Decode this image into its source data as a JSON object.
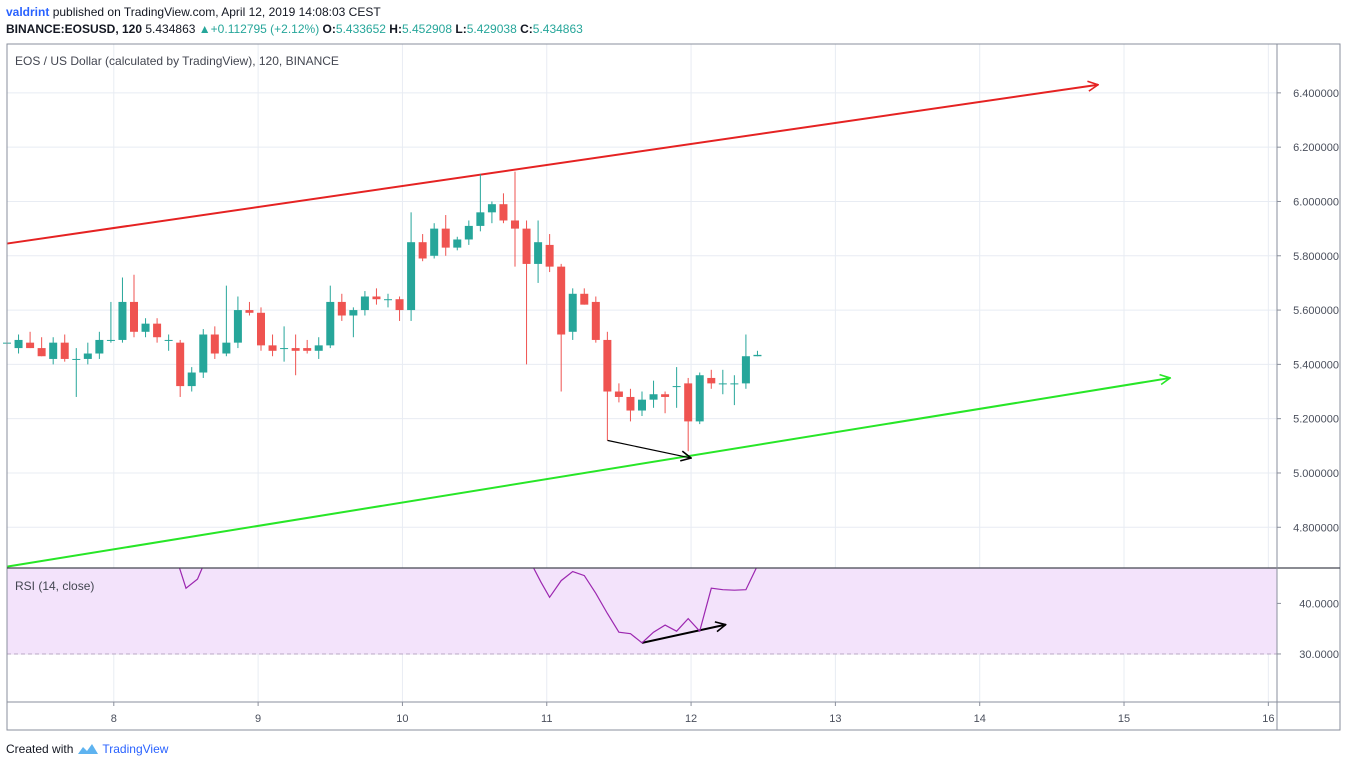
{
  "header": {
    "author": "valdrint",
    "published_text": "published on TradingView.com, April 12, 2019 14:08:03 CEST",
    "symbol": "BINANCE:EOSUSD, 120",
    "last": "5.434863",
    "change": "+0.112795 (+2.12%)",
    "o_label": "O:",
    "o_value": "5.433652",
    "h_label": "H:",
    "h_value": "5.452908",
    "l_label": "L:",
    "l_value": "5.429038",
    "c_label": "C:",
    "c_value": "5.434863"
  },
  "footer": {
    "created_with": "Created with",
    "brand": "TradingView"
  },
  "colors": {
    "up": "#26a69a",
    "down": "#ef5350",
    "resistance": "#e52222",
    "support": "#27e627",
    "rsi_line": "#9c27b0",
    "rsi_band": "#f3e3fb"
  },
  "chart_data": [
    {
      "type": "candlestick",
      "title": "EOS / US Dollar (calculated by TradingView), 120, BINANCE",
      "ylim": [
        4.65,
        6.58
      ],
      "xlim": [
        7.26,
        16.06
      ],
      "y_ticks": [
        "6.400000",
        "6.200000",
        "6.000000",
        "5.800000",
        "5.600000",
        "5.400000",
        "5.200000",
        "5.000000",
        "4.800000"
      ],
      "x_ticks": [
        "8",
        "9",
        "10",
        "11",
        "12",
        "13",
        "14",
        "15",
        "16"
      ],
      "grid": true,
      "candles": [
        {
          "x": 7.26,
          "o": 5.48,
          "h": 5.49,
          "l": 5.47,
          "c": 5.48
        },
        {
          "x": 7.34,
          "o": 5.46,
          "h": 5.51,
          "l": 5.44,
          "c": 5.49
        },
        {
          "x": 7.42,
          "o": 5.48,
          "h": 5.52,
          "l": 5.46,
          "c": 5.46
        },
        {
          "x": 7.5,
          "o": 5.46,
          "h": 5.5,
          "l": 5.43,
          "c": 5.43
        },
        {
          "x": 7.58,
          "o": 5.42,
          "h": 5.5,
          "l": 5.4,
          "c": 5.48
        },
        {
          "x": 7.66,
          "o": 5.48,
          "h": 5.51,
          "l": 5.41,
          "c": 5.42
        },
        {
          "x": 7.74,
          "o": 5.42,
          "h": 5.46,
          "l": 5.28,
          "c": 5.42
        },
        {
          "x": 7.82,
          "o": 5.42,
          "h": 5.48,
          "l": 5.4,
          "c": 5.44
        },
        {
          "x": 7.9,
          "o": 5.44,
          "h": 5.52,
          "l": 5.42,
          "c": 5.49
        },
        {
          "x": 7.98,
          "o": 5.49,
          "h": 5.63,
          "l": 5.48,
          "c": 5.49
        },
        {
          "x": 8.06,
          "o": 5.49,
          "h": 5.72,
          "l": 5.48,
          "c": 5.63
        },
        {
          "x": 8.14,
          "o": 5.63,
          "h": 5.73,
          "l": 5.5,
          "c": 5.52
        },
        {
          "x": 8.22,
          "o": 5.52,
          "h": 5.57,
          "l": 5.5,
          "c": 5.55
        },
        {
          "x": 8.3,
          "o": 5.55,
          "h": 5.57,
          "l": 5.48,
          "c": 5.5
        },
        {
          "x": 8.38,
          "o": 5.49,
          "h": 5.51,
          "l": 5.45,
          "c": 5.49
        },
        {
          "x": 8.46,
          "o": 5.48,
          "h": 5.49,
          "l": 5.28,
          "c": 5.32
        },
        {
          "x": 8.54,
          "o": 5.32,
          "h": 5.39,
          "l": 5.3,
          "c": 5.37
        },
        {
          "x": 8.62,
          "o": 5.37,
          "h": 5.53,
          "l": 5.35,
          "c": 5.51
        },
        {
          "x": 8.7,
          "o": 5.51,
          "h": 5.54,
          "l": 5.42,
          "c": 5.44
        },
        {
          "x": 8.78,
          "o": 5.44,
          "h": 5.69,
          "l": 5.43,
          "c": 5.48
        },
        {
          "x": 8.86,
          "o": 5.48,
          "h": 5.65,
          "l": 5.46,
          "c": 5.6
        },
        {
          "x": 8.94,
          "o": 5.6,
          "h": 5.63,
          "l": 5.58,
          "c": 5.59
        },
        {
          "x": 9.02,
          "o": 5.59,
          "h": 5.61,
          "l": 5.45,
          "c": 5.47
        },
        {
          "x": 9.1,
          "o": 5.47,
          "h": 5.51,
          "l": 5.43,
          "c": 5.45
        },
        {
          "x": 9.18,
          "o": 5.46,
          "h": 5.54,
          "l": 5.41,
          "c": 5.46
        },
        {
          "x": 9.26,
          "o": 5.46,
          "h": 5.51,
          "l": 5.36,
          "c": 5.45
        },
        {
          "x": 9.34,
          "o": 5.46,
          "h": 5.49,
          "l": 5.44,
          "c": 5.45
        },
        {
          "x": 9.42,
          "o": 5.45,
          "h": 5.5,
          "l": 5.42,
          "c": 5.47
        },
        {
          "x": 9.5,
          "o": 5.47,
          "h": 5.69,
          "l": 5.46,
          "c": 5.63
        },
        {
          "x": 9.58,
          "o": 5.63,
          "h": 5.66,
          "l": 5.56,
          "c": 5.58
        },
        {
          "x": 9.66,
          "o": 5.58,
          "h": 5.61,
          "l": 5.5,
          "c": 5.6
        },
        {
          "x": 9.74,
          "o": 5.6,
          "h": 5.67,
          "l": 5.58,
          "c": 5.65
        },
        {
          "x": 9.82,
          "o": 5.65,
          "h": 5.68,
          "l": 5.62,
          "c": 5.64
        },
        {
          "x": 9.9,
          "o": 5.64,
          "h": 5.66,
          "l": 5.61,
          "c": 5.64
        },
        {
          "x": 9.98,
          "o": 5.64,
          "h": 5.65,
          "l": 5.56,
          "c": 5.6
        },
        {
          "x": 10.06,
          "o": 5.6,
          "h": 5.96,
          "l": 5.56,
          "c": 5.85
        },
        {
          "x": 10.14,
          "o": 5.85,
          "h": 5.88,
          "l": 5.78,
          "c": 5.79
        },
        {
          "x": 10.22,
          "o": 5.8,
          "h": 5.92,
          "l": 5.79,
          "c": 5.9
        },
        {
          "x": 10.3,
          "o": 5.9,
          "h": 5.95,
          "l": 5.8,
          "c": 5.83
        },
        {
          "x": 10.38,
          "o": 5.83,
          "h": 5.87,
          "l": 5.82,
          "c": 5.86
        },
        {
          "x": 10.46,
          "o": 5.86,
          "h": 5.93,
          "l": 5.84,
          "c": 5.91
        },
        {
          "x": 10.54,
          "o": 5.91,
          "h": 6.1,
          "l": 5.89,
          "c": 5.96
        },
        {
          "x": 10.62,
          "o": 5.96,
          "h": 6.0,
          "l": 5.92,
          "c": 5.99
        },
        {
          "x": 10.7,
          "o": 5.99,
          "h": 6.03,
          "l": 5.92,
          "c": 5.93
        },
        {
          "x": 10.78,
          "o": 5.93,
          "h": 6.11,
          "l": 5.76,
          "c": 5.9
        },
        {
          "x": 10.86,
          "o": 5.9,
          "h": 5.93,
          "l": 5.4,
          "c": 5.77
        },
        {
          "x": 10.94,
          "o": 5.77,
          "h": 5.93,
          "l": 5.7,
          "c": 5.85
        },
        {
          "x": 11.02,
          "o": 5.84,
          "h": 5.88,
          "l": 5.74,
          "c": 5.76
        },
        {
          "x": 11.1,
          "o": 5.76,
          "h": 5.77,
          "l": 5.3,
          "c": 5.51
        },
        {
          "x": 11.18,
          "o": 5.52,
          "h": 5.68,
          "l": 5.49,
          "c": 5.66
        },
        {
          "x": 11.26,
          "o": 5.66,
          "h": 5.68,
          "l": 5.62,
          "c": 5.62
        },
        {
          "x": 11.34,
          "o": 5.63,
          "h": 5.65,
          "l": 5.48,
          "c": 5.49
        },
        {
          "x": 11.42,
          "o": 5.49,
          "h": 5.52,
          "l": 5.12,
          "c": 5.3
        },
        {
          "x": 11.5,
          "o": 5.3,
          "h": 5.33,
          "l": 5.26,
          "c": 5.28
        },
        {
          "x": 11.58,
          "o": 5.28,
          "h": 5.31,
          "l": 5.19,
          "c": 5.23
        },
        {
          "x": 11.66,
          "o": 5.23,
          "h": 5.3,
          "l": 5.21,
          "c": 5.27
        },
        {
          "x": 11.74,
          "o": 5.27,
          "h": 5.34,
          "l": 5.24,
          "c": 5.29
        },
        {
          "x": 11.82,
          "o": 5.29,
          "h": 5.3,
          "l": 5.22,
          "c": 5.28
        },
        {
          "x": 11.9,
          "o": 5.32,
          "h": 5.39,
          "l": 5.24,
          "c": 5.32
        },
        {
          "x": 11.98,
          "o": 5.33,
          "h": 5.35,
          "l": 5.08,
          "c": 5.19
        },
        {
          "x": 12.06,
          "o": 5.19,
          "h": 5.37,
          "l": 5.18,
          "c": 5.36
        },
        {
          "x": 12.14,
          "o": 5.35,
          "h": 5.38,
          "l": 5.31,
          "c": 5.33
        },
        {
          "x": 12.22,
          "o": 5.33,
          "h": 5.38,
          "l": 5.29,
          "c": 5.33
        },
        {
          "x": 12.3,
          "o": 5.33,
          "h": 5.36,
          "l": 5.25,
          "c": 5.33
        },
        {
          "x": 12.38,
          "o": 5.33,
          "h": 5.51,
          "l": 5.31,
          "c": 5.43
        },
        {
          "x": 12.46,
          "o": 5.43,
          "h": 5.45,
          "l": 5.43,
          "c": 5.435
        }
      ],
      "trendlines": [
        {
          "kind": "resistance",
          "from": {
            "x": 7.26,
            "y": 5.845
          },
          "to": {
            "x": 14.82,
            "y": 6.43
          },
          "arrow": true
        },
        {
          "kind": "support",
          "from": {
            "x": 7.26,
            "y": 4.655
          },
          "to": {
            "x": 15.32,
            "y": 5.35
          },
          "arrow": true
        },
        {
          "kind": "divergence",
          "from": {
            "x": 11.42,
            "y": 5.12
          },
          "to": {
            "x": 12.0,
            "y": 5.055
          },
          "arrow": true
        }
      ]
    },
    {
      "type": "line",
      "title": "RSI (14, close)",
      "ylim": [
        20.5,
        47.0
      ],
      "y_ticks": [
        "40.0000",
        "30.0000"
      ],
      "reference_line": 30,
      "band": [
        30,
        70
      ],
      "series": [
        {
          "segments": [
            [
              {
                "x": 8.45,
                "y": 47.5
              },
              {
                "x": 8.5,
                "y": 43.0
              },
              {
                "x": 8.58,
                "y": 44.8
              },
              {
                "x": 8.62,
                "y": 47.5
              }
            ],
            [
              {
                "x": 10.9,
                "y": 47.5
              },
              {
                "x": 10.96,
                "y": 44.2
              },
              {
                "x": 11.02,
                "y": 41.2
              },
              {
                "x": 11.1,
                "y": 44.5
              },
              {
                "x": 11.18,
                "y": 46.3
              },
              {
                "x": 11.26,
                "y": 45.5
              },
              {
                "x": 11.34,
                "y": 42.0
              },
              {
                "x": 11.42,
                "y": 38.0
              },
              {
                "x": 11.5,
                "y": 34.3
              },
              {
                "x": 11.58,
                "y": 34.0
              },
              {
                "x": 11.66,
                "y": 32.2
              },
              {
                "x": 11.74,
                "y": 34.3
              },
              {
                "x": 11.82,
                "y": 35.7
              },
              {
                "x": 11.9,
                "y": 34.5
              },
              {
                "x": 11.98,
                "y": 37.0
              },
              {
                "x": 12.06,
                "y": 34.5
              },
              {
                "x": 12.14,
                "y": 43.0
              },
              {
                "x": 12.22,
                "y": 42.7
              },
              {
                "x": 12.3,
                "y": 42.6
              },
              {
                "x": 12.38,
                "y": 42.7
              },
              {
                "x": 12.46,
                "y": 47.5
              }
            ]
          ]
        }
      ],
      "trendlines": [
        {
          "kind": "divergence",
          "from": {
            "x": 11.66,
            "y": 32.2
          },
          "to": {
            "x": 12.24,
            "y": 35.8
          },
          "arrow": true
        }
      ]
    }
  ]
}
